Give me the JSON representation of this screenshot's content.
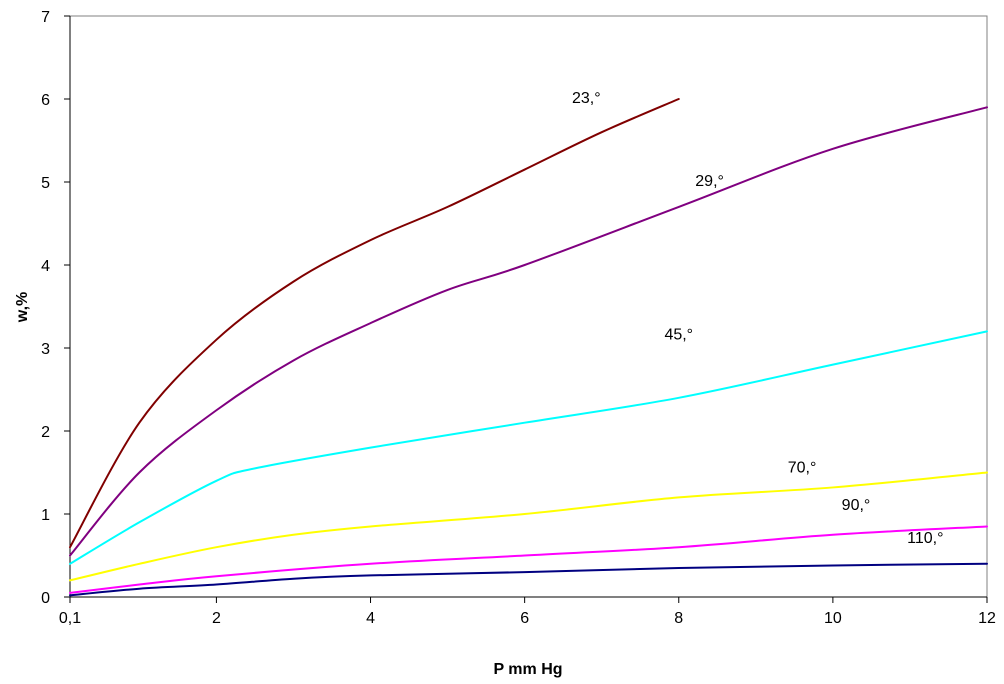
{
  "chart_data": {
    "type": "line",
    "title": "",
    "xlabel": "P mm Hg",
    "ylabel": "w,%",
    "xlim": [
      0.1,
      12
    ],
    "ylim": [
      0,
      7
    ],
    "grid": false,
    "x_ticks": [
      {
        "value": 0.1,
        "label": "0,1"
      },
      {
        "value": 2,
        "label": "2"
      },
      {
        "value": 4,
        "label": "4"
      },
      {
        "value": 6,
        "label": "6"
      },
      {
        "value": 8,
        "label": "8"
      },
      {
        "value": 10,
        "label": "10"
      },
      {
        "value": 12,
        "label": "12"
      }
    ],
    "y_ticks": [
      {
        "value": 0,
        "label": "0"
      },
      {
        "value": 1,
        "label": "1"
      },
      {
        "value": 2,
        "label": "2"
      },
      {
        "value": 3,
        "label": "3"
      },
      {
        "value": 4,
        "label": "4"
      },
      {
        "value": 5,
        "label": "5"
      },
      {
        "value": 6,
        "label": "6"
      },
      {
        "value": 7,
        "label": "7"
      }
    ],
    "series": [
      {
        "name": "23,°",
        "color": "#800000",
        "label_at": [
          6.8,
          5.95
        ],
        "points": [
          [
            0.1,
            0.6
          ],
          [
            1,
            2.1
          ],
          [
            2,
            3.1
          ],
          [
            3,
            3.8
          ],
          [
            4,
            4.3
          ],
          [
            5,
            4.7
          ],
          [
            6,
            5.15
          ],
          [
            7,
            5.6
          ],
          [
            8,
            6.0
          ]
        ]
      },
      {
        "name": "29,°",
        "color": "#800080",
        "label_at": [
          8.4,
          4.95
        ],
        "points": [
          [
            0.1,
            0.5
          ],
          [
            1,
            1.5
          ],
          [
            2,
            2.25
          ],
          [
            3,
            2.85
          ],
          [
            4,
            3.3
          ],
          [
            5,
            3.7
          ],
          [
            6,
            4.0
          ],
          [
            8,
            4.7
          ],
          [
            10,
            5.4
          ],
          [
            12,
            5.9
          ]
        ]
      },
      {
        "name": "45,°",
        "color": "#00FFFF",
        "label_at": [
          8.0,
          3.1
        ],
        "points": [
          [
            0.1,
            0.4
          ],
          [
            1,
            0.9
          ],
          [
            2,
            1.4
          ],
          [
            2.5,
            1.55
          ],
          [
            4,
            1.8
          ],
          [
            6,
            2.1
          ],
          [
            8,
            2.4
          ],
          [
            10,
            2.8
          ],
          [
            12,
            3.2
          ]
        ]
      },
      {
        "name": "70,°",
        "color": "#FFFF00",
        "label_at": [
          9.6,
          1.5
        ],
        "points": [
          [
            0.1,
            0.2
          ],
          [
            1,
            0.4
          ],
          [
            2,
            0.6
          ],
          [
            3,
            0.75
          ],
          [
            4,
            0.85
          ],
          [
            6,
            1.0
          ],
          [
            8,
            1.2
          ],
          [
            10,
            1.32
          ],
          [
            12,
            1.5
          ]
        ]
      },
      {
        "name": "90,°",
        "color": "#FF00FF",
        "label_at": [
          10.3,
          1.05
        ],
        "points": [
          [
            0.1,
            0.05
          ],
          [
            1,
            0.15
          ],
          [
            2,
            0.25
          ],
          [
            4,
            0.4
          ],
          [
            6,
            0.5
          ],
          [
            8,
            0.6
          ],
          [
            10,
            0.75
          ],
          [
            12,
            0.85
          ]
        ]
      },
      {
        "name": "110,°",
        "color": "#000080",
        "label_at": [
          11.2,
          0.65
        ],
        "points": [
          [
            0.1,
            0.02
          ],
          [
            1,
            0.1
          ],
          [
            2,
            0.15
          ],
          [
            3,
            0.22
          ],
          [
            4,
            0.26
          ],
          [
            6,
            0.3
          ],
          [
            8,
            0.35
          ],
          [
            10,
            0.38
          ],
          [
            12,
            0.4
          ]
        ]
      }
    ]
  }
}
